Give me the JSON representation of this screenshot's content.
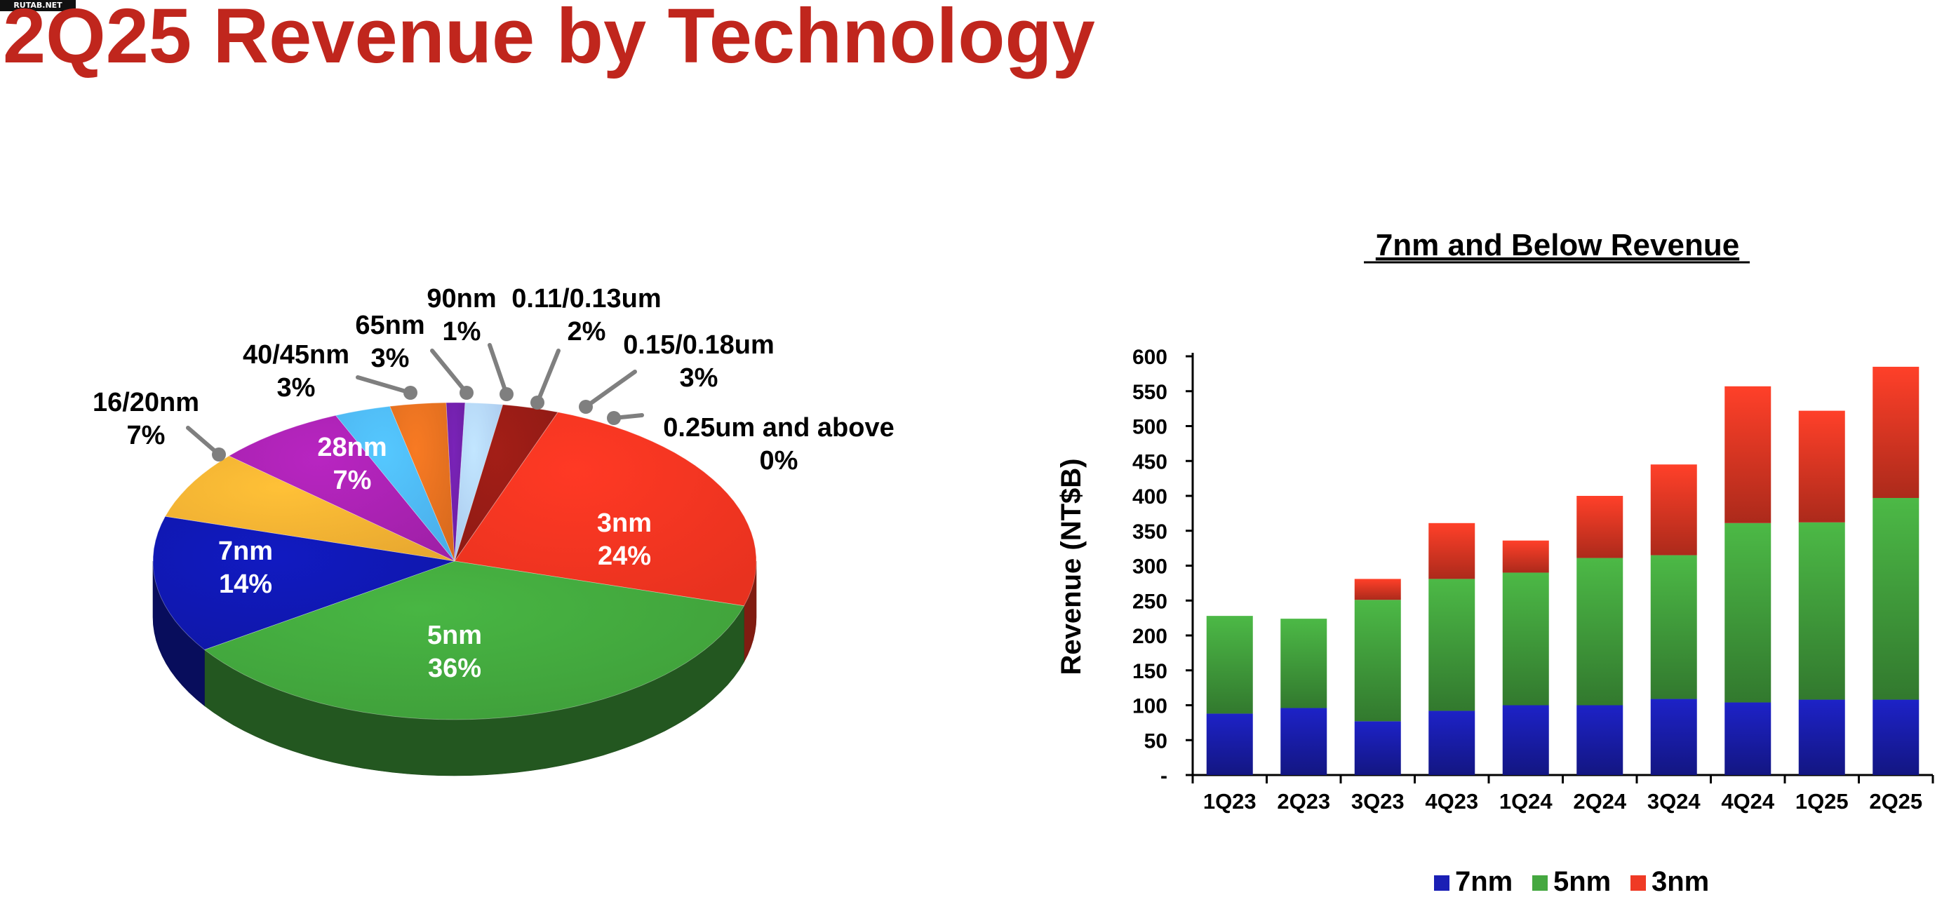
{
  "watermark": "RUTAB.NET",
  "page_title": "2Q25 Revenue by Technology",
  "chart_data": [
    {
      "type": "pie",
      "title": "",
      "slices": [
        {
          "label": "3nm",
          "name_label": "3nm",
          "pct_label": "24%",
          "value": 24,
          "color": "#e8321f",
          "inside": true
        },
        {
          "label": "5nm",
          "name_label": "5nm",
          "pct_label": "36%",
          "value": 36,
          "color": "#3f9e3a",
          "inside": true
        },
        {
          "label": "7nm",
          "name_label": "7nm",
          "pct_label": "14%",
          "value": 14,
          "color": "#0f17a8",
          "inside": true
        },
        {
          "label": "16/20nm",
          "name_label": "16/20nm",
          "pct_label": "7%",
          "value": 7,
          "color": "#e8a830",
          "inside": false
        },
        {
          "label": "28nm",
          "name_label": "28nm",
          "pct_label": "7%",
          "value": 7,
          "color": "#a020a8",
          "inside": true
        },
        {
          "label": "40/45nm",
          "name_label": "40/45nm",
          "pct_label": "3%",
          "value": 3,
          "color": "#4aaeea",
          "inside": false
        },
        {
          "label": "65nm",
          "name_label": "65nm",
          "pct_label": "3%",
          "value": 3,
          "color": "#d86a1e",
          "inside": false
        },
        {
          "label": "90nm",
          "name_label": "90nm",
          "pct_label": "1%",
          "value": 1,
          "color": "#6a1ea0",
          "inside": false
        },
        {
          "label": "0.11/0.13um",
          "name_label": "0.11/0.13um",
          "pct_label": "2%",
          "value": 2,
          "color": "#a9c8ec",
          "inside": false
        },
        {
          "label": "0.15/0.18um",
          "name_label": "0.15/0.18um",
          "pct_label": "3%",
          "value": 3,
          "color": "#8e1a14",
          "inside": false
        },
        {
          "label": "0.25um and above",
          "name_label": "0.25um and above",
          "pct_label": "0%",
          "value": 0,
          "color": "#b02418",
          "inside": false
        }
      ]
    },
    {
      "type": "bar",
      "stacked": true,
      "title": "7nm and Below Revenue",
      "xlabel": "",
      "ylabel": "Revenue (NT$B)",
      "ylim": [
        0,
        600
      ],
      "yticks": [
        0,
        50,
        100,
        150,
        200,
        250,
        300,
        350,
        400,
        450,
        500,
        550,
        600
      ],
      "ytick_labels": [
        "-",
        "50",
        "100",
        "150",
        "200",
        "250",
        "300",
        "350",
        "400",
        "450",
        "500",
        "550",
        "600"
      ],
      "categories": [
        "1Q23",
        "2Q23",
        "3Q23",
        "4Q23",
        "1Q24",
        "2Q24",
        "3Q24",
        "4Q24",
        "1Q25",
        "2Q25"
      ],
      "series": [
        {
          "name": "7nm",
          "color": "#1a1fb5",
          "values": [
            88,
            96,
            77,
            92,
            100,
            100,
            109,
            104,
            108,
            108
          ]
        },
        {
          "name": "5nm",
          "color": "#45a840",
          "values": [
            140,
            128,
            174,
            189,
            190,
            211,
            206,
            257,
            254,
            289
          ]
        },
        {
          "name": "3nm",
          "color": "#ef3a25",
          "values": [
            0,
            0,
            30,
            80,
            46,
            89,
            130,
            196,
            160,
            188
          ]
        }
      ],
      "legend_position": "bottom"
    }
  ]
}
